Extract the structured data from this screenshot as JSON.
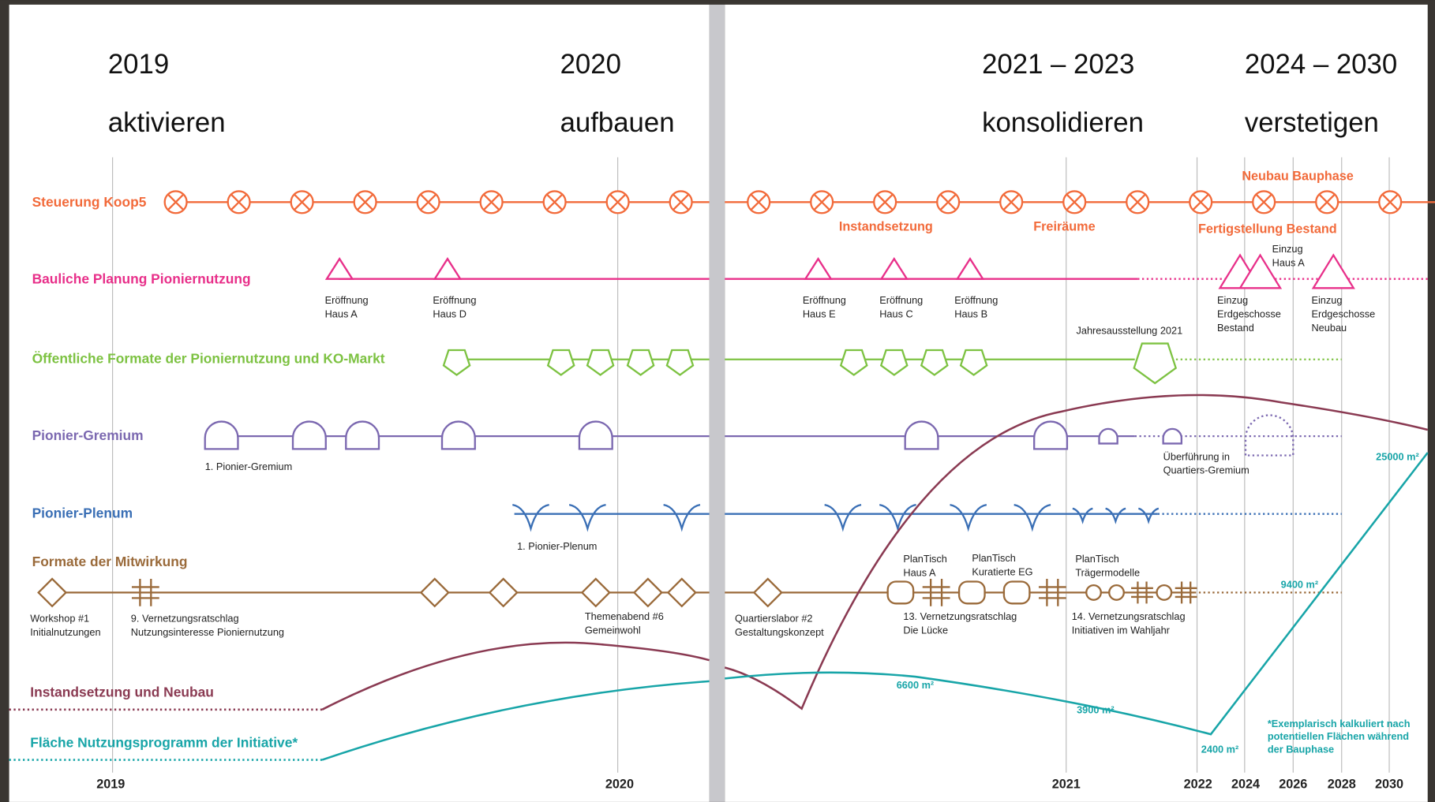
{
  "phases": [
    {
      "years": "2019",
      "verb": "aktivieren"
    },
    {
      "years": "2020",
      "verb": "aufbauen"
    },
    {
      "years": "2021 – 2023",
      "verb": "konsolidieren"
    },
    {
      "years": "2024 – 2030",
      "verb": "verstetigen"
    }
  ],
  "rows": [
    {
      "label": "Steuerung Koop5"
    },
    {
      "label": "Bauliche Planung Pioniernutzung"
    },
    {
      "label": "Öffentliche Formate der Pioniernutzung und KO-Markt"
    },
    {
      "label": "Pionier-Gremium"
    },
    {
      "label": "Pionier-Plenum"
    },
    {
      "label": "Formate der Mitwirkung"
    },
    {
      "label": "Instandsetzung und Neubau"
    },
    {
      "label": "Fläche Nutzungsprogramm der Initiative*"
    }
  ],
  "phase_notes": [
    "Neubau Bauphase",
    "Instandsetzung",
    "Freiräume",
    "Fertigstellung Bestand"
  ],
  "notes": [
    {
      "lines": [
        "Eröffnung",
        "Haus A"
      ]
    },
    {
      "lines": [
        "Eröffnung",
        "Haus D"
      ]
    },
    {
      "lines": [
        "Eröffnung",
        "Haus E"
      ]
    },
    {
      "lines": [
        "Eröffnung",
        "Haus C"
      ]
    },
    {
      "lines": [
        "Eröffnung",
        "Haus B"
      ]
    },
    {
      "lines": [
        "Einzug",
        "Haus A"
      ]
    },
    {
      "lines": [
        "Einzug",
        "Erdgeschosse",
        "Bestand"
      ]
    },
    {
      "lines": [
        "Einzug",
        "Erdgeschosse",
        "Neubau"
      ]
    },
    {
      "lines": [
        "Jahresausstellung 2021"
      ]
    },
    {
      "lines": [
        "1. Pionier-Gremium"
      ]
    },
    {
      "lines": [
        "Überführung in",
        "Quartiers-Gremium"
      ]
    },
    {
      "lines": [
        "1. Pionier-Plenum"
      ]
    },
    {
      "lines": [
        "PlanTisch",
        "Haus A"
      ]
    },
    {
      "lines": [
        "PlanTisch",
        "Kuratierte EG"
      ]
    },
    {
      "lines": [
        "PlanTisch",
        "Trägermodelle"
      ]
    },
    {
      "lines": [
        "Workshop #1",
        "Initialnutzungen"
      ]
    },
    {
      "lines": [
        "9. Vernetzungsratschlag",
        "Nutzungsinteresse Pioniernutzung"
      ]
    },
    {
      "lines": [
        "Themenabend #6",
        "Gemeinwohl"
      ]
    },
    {
      "lines": [
        "Quartierslabor #2",
        "Gestaltungskonzept"
      ]
    },
    {
      "lines": [
        "13. Vernetzungsratschlag",
        "Die Lücke"
      ]
    },
    {
      "lines": [
        "14. Vernetzungsratschlag",
        "Initiativen im Wahljahr"
      ]
    }
  ],
  "area_labels": [
    "6600 m²",
    "3900 m²",
    "2400 m²",
    "9400 m²",
    "25000 m²"
  ],
  "footnote": [
    "*Exemplarisch kalkuliert nach",
    "potentiellen Flächen während",
    "der Bauphase"
  ],
  "axis_years": [
    "2019",
    "2020",
    "2021",
    "2022",
    "2024",
    "2026",
    "2028",
    "2030"
  ]
}
